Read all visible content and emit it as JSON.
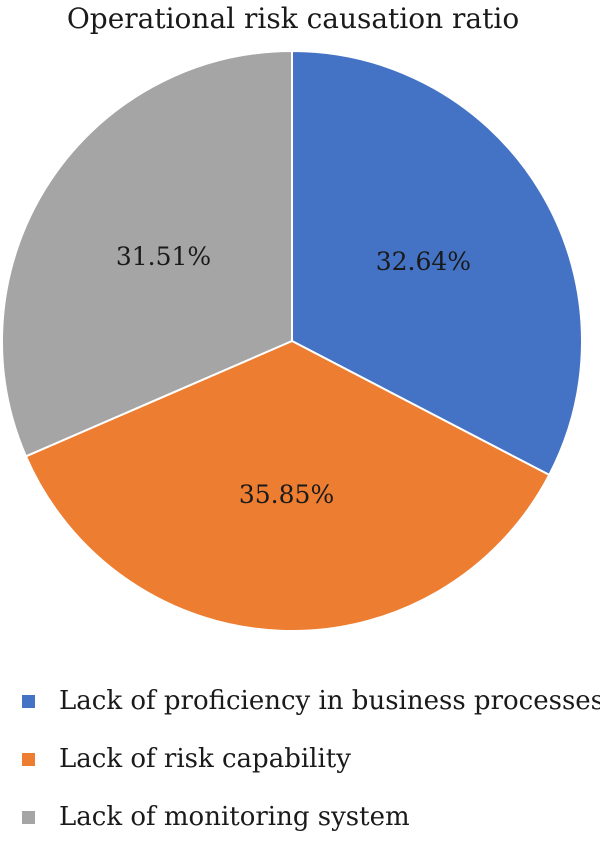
{
  "chart_data": {
    "type": "pie",
    "title": "Operational risk causation ratio",
    "start_angle_deg": 0,
    "direction": "clockwise",
    "slices": [
      {
        "label": "Lack of proficiency in business processes",
        "value": 32.64,
        "display": "32.64%",
        "color": "#4472c4"
      },
      {
        "label": "Lack of risk capability",
        "value": 35.85,
        "display": "35.85%",
        "color": "#ed7d31"
      },
      {
        "label": "Lack of monitoring system",
        "value": 31.51,
        "display": "31.51%",
        "color": "#a5a5a5"
      }
    ],
    "legend_position": "bottom"
  }
}
